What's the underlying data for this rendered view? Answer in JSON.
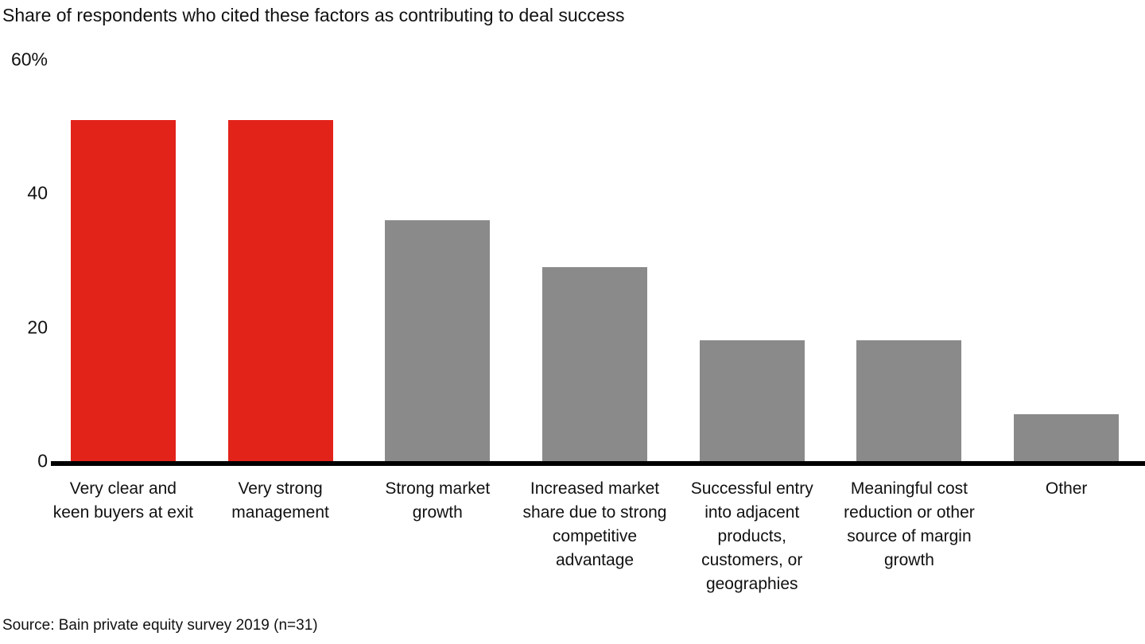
{
  "title": "Share of respondents who cited these factors as contributing to deal success",
  "source": "Source: Bain private equity survey 2019 (n=31)",
  "colors": {
    "highlight_red": "#e2231a",
    "bar_gray": "#8a8a8a",
    "axis_black": "#000000"
  },
  "chart_data": {
    "type": "bar",
    "title": "Share of respondents who cited these factors as contributing to deal success",
    "xlabel": "",
    "ylabel": "",
    "ylim": [
      0,
      60
    ],
    "grid": false,
    "legend": "none",
    "yticks": [
      {
        "value": 0,
        "label": "0"
      },
      {
        "value": 20,
        "label": "20"
      },
      {
        "value": 40,
        "label": "40"
      },
      {
        "value": 60,
        "label": "60%"
      }
    ],
    "categories": [
      "Very clear and keen buyers at exit",
      "Very strong management",
      "Strong market growth",
      "Increased market share due to strong competitive advantage",
      "Successful entry into adjacent products, customers, or geographies",
      "Meaningful cost reduction or other source of margin growth",
      "Other"
    ],
    "values": [
      51,
      51,
      36,
      29,
      18,
      18,
      7
    ],
    "bars": [
      {
        "label": "Very clear and keen buyers at exit",
        "value": 51,
        "color": "#e2231a"
      },
      {
        "label": "Very strong management",
        "value": 51,
        "color": "#e2231a"
      },
      {
        "label": "Strong market growth",
        "value": 36,
        "color": "#8a8a8a"
      },
      {
        "label": "Increased market share due to strong competitive advantage",
        "value": 29,
        "color": "#8a8a8a"
      },
      {
        "label": "Successful entry into adjacent products, customers, or geographies",
        "value": 18,
        "color": "#8a8a8a"
      },
      {
        "label": "Meaningful cost reduction or other source of margin growth",
        "value": 18,
        "color": "#8a8a8a"
      },
      {
        "label": "Other",
        "value": 7,
        "color": "#8a8a8a"
      }
    ]
  }
}
